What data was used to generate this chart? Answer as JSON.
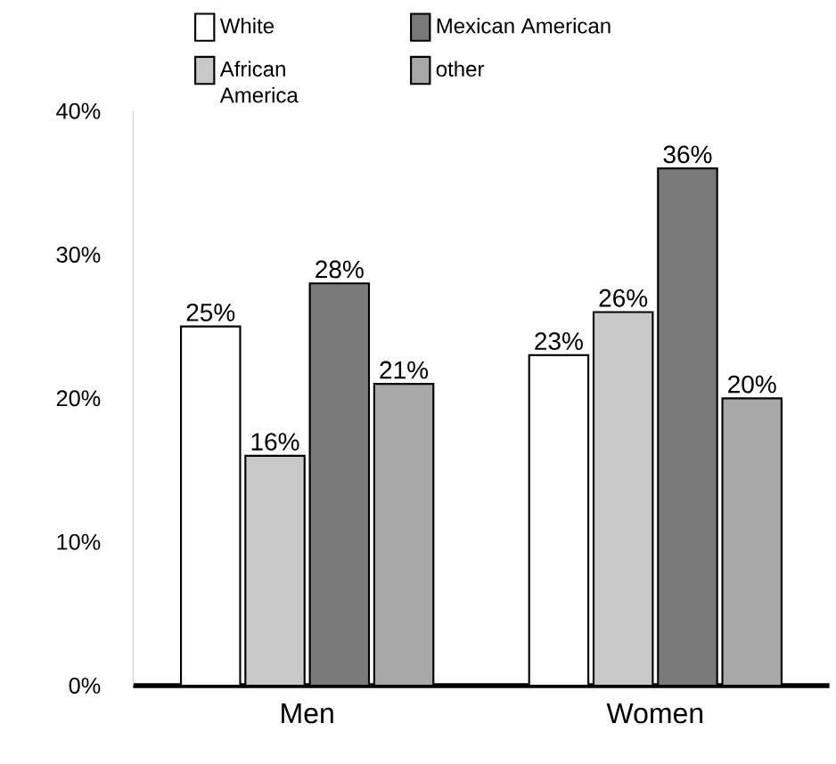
{
  "chart_data": {
    "type": "bar",
    "categories": [
      "Men",
      "Women"
    ],
    "series": [
      {
        "name": "White",
        "color": "#ffffff",
        "values": [
          25,
          23
        ],
        "value_labels": [
          "25%",
          "23%"
        ]
      },
      {
        "name": "African America",
        "color": "#c8c8c8",
        "values": [
          16,
          26
        ],
        "value_labels": [
          "16%",
          "26%"
        ]
      },
      {
        "name": "Mexican American",
        "color": "#7a7a7a",
        "values": [
          28,
          36
        ],
        "value_labels": [
          "28%",
          "36%"
        ]
      },
      {
        "name": "other",
        "color": "#a8a8a8",
        "values": [
          21,
          20
        ],
        "value_labels": [
          "21%",
          "20%"
        ]
      }
    ],
    "ylim": [
      0,
      40
    ],
    "yticks": [
      {
        "value": 0,
        "label": "0%"
      },
      {
        "value": 10,
        "label": "10%"
      },
      {
        "value": 20,
        "label": "20%"
      },
      {
        "value": 30,
        "label": "30%"
      },
      {
        "value": 40,
        "label": "40%"
      }
    ],
    "grid": false,
    "legend": "top"
  }
}
